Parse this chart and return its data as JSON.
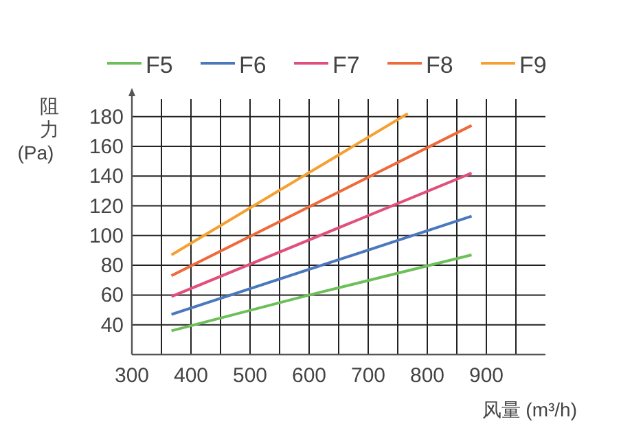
{
  "chart_data": {
    "type": "line",
    "xlabel": "风量 (m³/h)",
    "ylabel": "阻力(Pa)",
    "xlim": [
      300,
      1000
    ],
    "ylim": [
      20,
      190
    ],
    "xticks": [
      300,
      {
        "value": 350,
        "label": null
      },
      400,
      {
        "value": 450,
        "label": null
      },
      500,
      {
        "value": 550,
        "label": null
      },
      600,
      {
        "value": 650,
        "label": null
      },
      700,
      {
        "value": 750,
        "label": null
      },
      800,
      {
        "value": 850,
        "label": null
      },
      900,
      {
        "value": 950,
        "label": null
      }
    ],
    "yticks": [
      40,
      60,
      80,
      100,
      120,
      140,
      160,
      180
    ],
    "grid": true,
    "legend": "top",
    "marker": "none",
    "line_style": "solid",
    "series": [
      {
        "name": "F5",
        "color": "#6dbf5a",
        "x": [
          367,
          600,
          875
        ],
        "values": [
          36,
          60,
          87
        ]
      },
      {
        "name": "F6",
        "color": "#4a78bd",
        "x": [
          367,
          875
        ],
        "values": [
          47,
          113
        ]
      },
      {
        "name": "F7",
        "color": "#e0507a",
        "x": [
          367,
          875
        ],
        "values": [
          59,
          142
        ]
      },
      {
        "name": "F8",
        "color": "#ef6a3a",
        "x": [
          367,
          875
        ],
        "values": [
          73,
          174
        ]
      },
      {
        "name": "F9",
        "color": "#f5a030",
        "x": [
          367,
          767
        ],
        "values": [
          87,
          182
        ]
      }
    ]
  }
}
